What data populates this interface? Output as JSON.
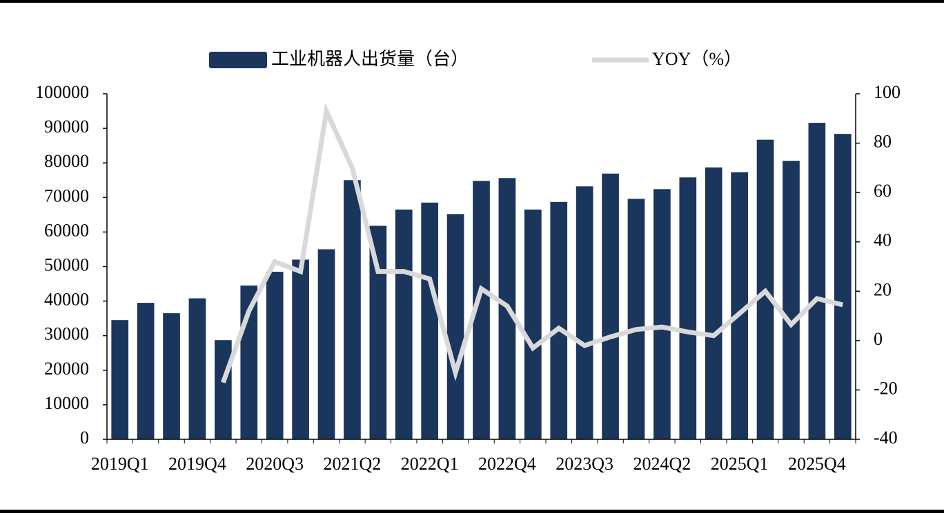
{
  "chart_data": {
    "type": "bar",
    "categories": [
      "2019Q1",
      null,
      null,
      "2019Q4",
      null,
      null,
      "2020Q3",
      null,
      null,
      "2021Q2",
      null,
      null,
      "2022Q1",
      null,
      null,
      "2022Q4",
      null,
      null,
      "2023Q3",
      null,
      null,
      "2024Q2",
      null,
      null,
      "2025Q1",
      null,
      null,
      "2025Q4",
      null
    ],
    "series": [
      {
        "name": "工业机器人出货量（台）",
        "type": "bar",
        "color": "#1b365d",
        "values": [
          34500,
          39500,
          36500,
          40800,
          28700,
          44500,
          48500,
          52000,
          55000,
          75000,
          61800,
          66500,
          68500,
          65200,
          74800,
          75600,
          66500,
          68700,
          73200,
          76900,
          69600,
          72400,
          75800,
          78700,
          77300,
          86700,
          80600,
          91600,
          88400
        ]
      },
      {
        "name": "YOY（%）",
        "type": "line",
        "axis": "y2",
        "color": "#d9d9d9",
        "values": [
          null,
          null,
          null,
          null,
          -17,
          12,
          32,
          28,
          93,
          70,
          28,
          28,
          25,
          -13,
          21,
          14,
          -3,
          5,
          -2,
          1.5,
          4.5,
          5.5,
          3.5,
          2,
          11,
          20,
          6.5,
          17,
          14.5
        ]
      }
    ],
    "ylim": [
      0,
      100000
    ],
    "yticks": [
      0,
      10000,
      20000,
      30000,
      40000,
      50000,
      60000,
      70000,
      80000,
      90000,
      100000
    ],
    "y2lim": [
      -40,
      100
    ],
    "y2ticks": [
      -40,
      -20,
      0,
      20,
      40,
      60,
      80,
      100
    ]
  }
}
